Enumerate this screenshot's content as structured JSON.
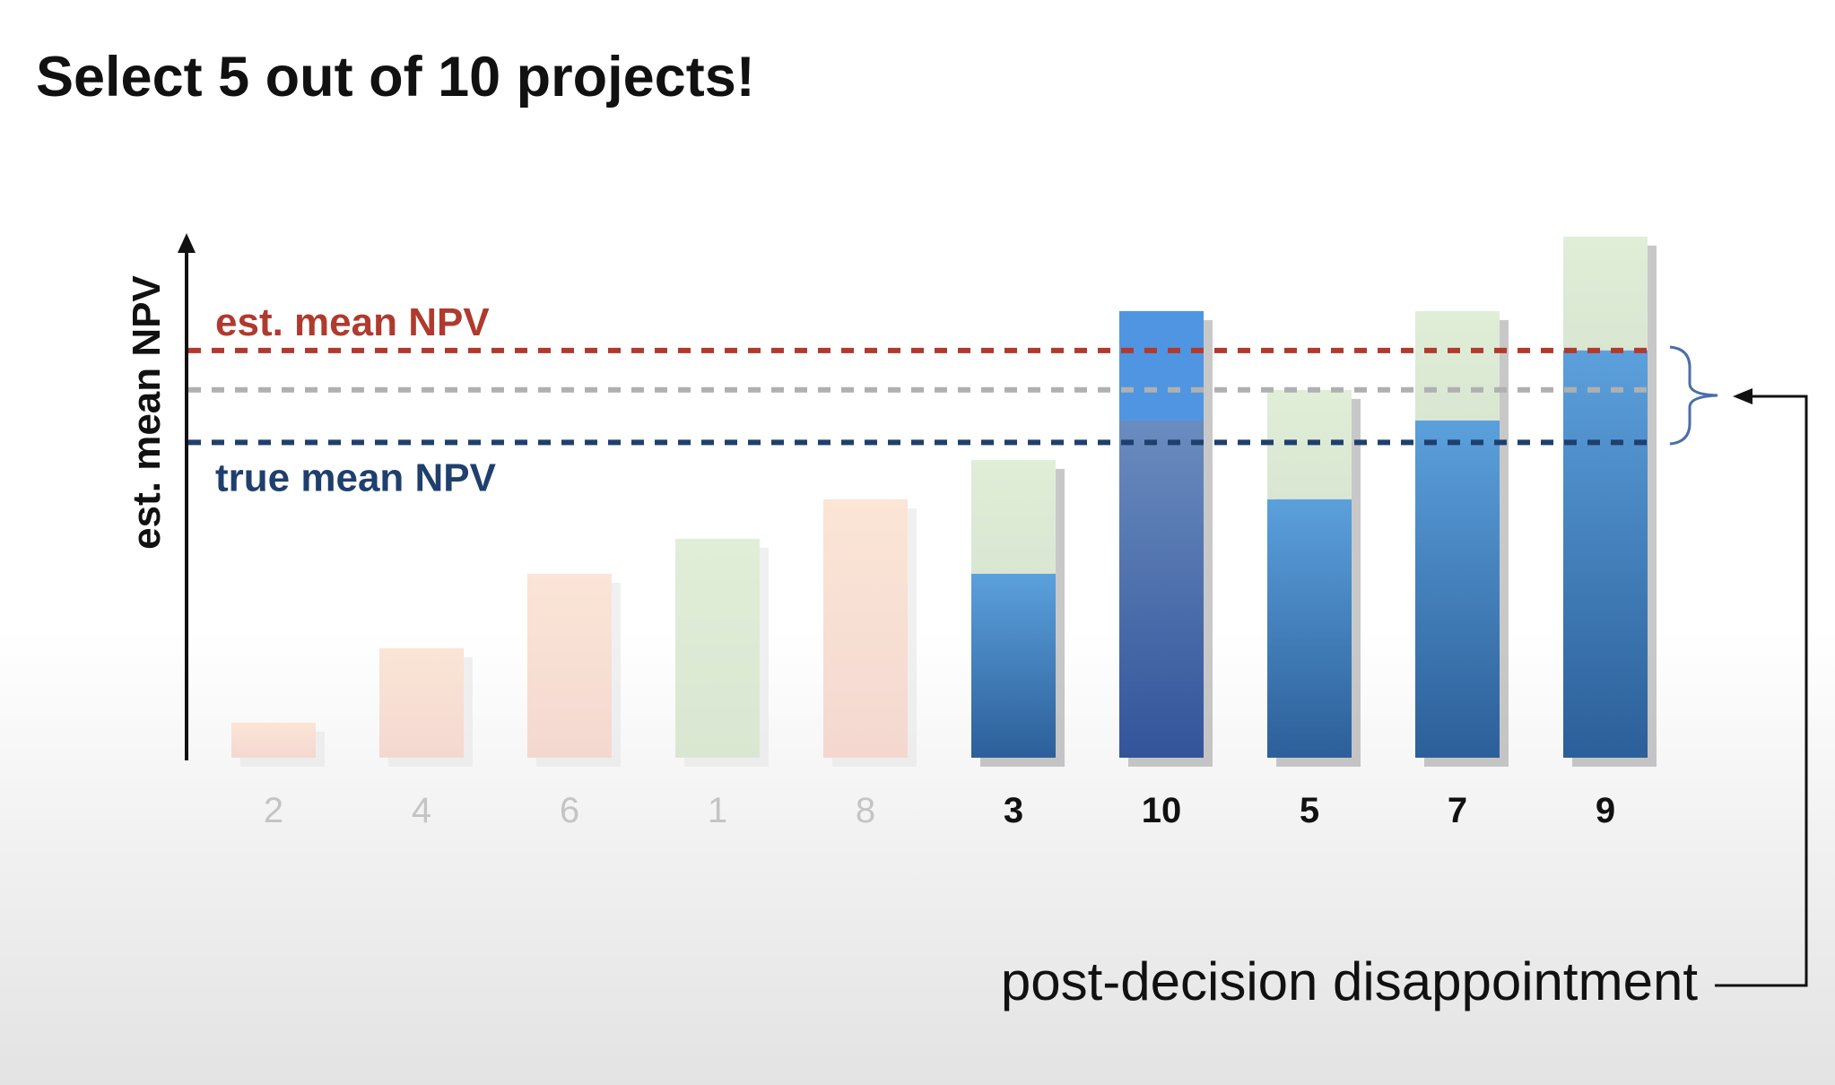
{
  "slide": {
    "title": "Select 5 out of 10 projects!"
  },
  "chart_data": {
    "type": "bar",
    "ylabel": "est. mean NPV",
    "xlabel": "",
    "categories": [
      "2",
      "4",
      "6",
      "1",
      "8",
      "3",
      "10",
      "5",
      "7",
      "9"
    ],
    "estimated_values": [
      4,
      12.5,
      21,
      25,
      29.5,
      34,
      51,
      42,
      51,
      59.5
    ],
    "true_values": [
      null,
      null,
      null,
      null,
      null,
      21,
      38.5,
      29.5,
      38.5,
      46.5
    ],
    "selected": [
      false,
      false,
      false,
      false,
      false,
      true,
      true,
      true,
      true,
      true
    ],
    "ylim": [
      0,
      60
    ],
    "reference_lines": [
      {
        "label": "est. mean NPV",
        "value": 46.5,
        "color": "#b03a2e"
      },
      {
        "label": "",
        "value": 42,
        "color": "#b0b0b0"
      },
      {
        "label": "true mean NPV",
        "value": 36,
        "color": "#1f3f6e"
      }
    ],
    "annotation": "post-decision disappointment",
    "colors": {
      "unselected_orange": "#f9dfcc",
      "unselected_green": "#dcebd3",
      "estimate_green": "#e2efda",
      "selected_blue": "#3f7fbf",
      "selected_blue_dark": "#2b5c96"
    }
  }
}
